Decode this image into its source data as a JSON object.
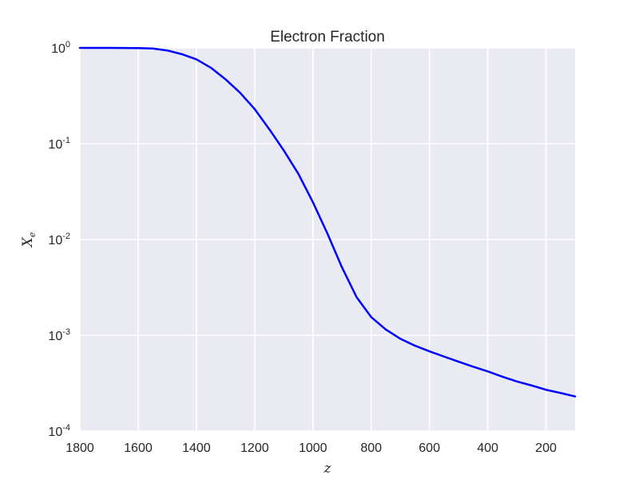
{
  "chart_data": {
    "type": "line",
    "title": "Electron Fraction",
    "xlabel": "z",
    "ylabel_main": "X",
    "ylabel_sub": "e",
    "y_scale": "log",
    "x_inverted": true,
    "xlim": [
      1800,
      100
    ],
    "ylim": [
      0.0001,
      1
    ],
    "grid": true,
    "background_color": "#EAEAF2",
    "grid_color": "#FFFFFF",
    "line_color": "#0000FF",
    "x_ticks": [
      1800,
      1600,
      1400,
      1200,
      1000,
      800,
      600,
      400,
      200
    ],
    "x_tick_labels": [
      "1800",
      "1600",
      "1400",
      "1200",
      "1000",
      "800",
      "600",
      "400",
      "200"
    ],
    "y_ticks": [
      {
        "value": 1,
        "base": "10",
        "exp": "0"
      },
      {
        "value": 0.1,
        "base": "10",
        "exp": "-1"
      },
      {
        "value": 0.01,
        "base": "10",
        "exp": "-2"
      },
      {
        "value": 0.001,
        "base": "10",
        "exp": "-3"
      },
      {
        "value": 0.0001,
        "base": "10",
        "exp": "-4"
      }
    ],
    "series": [
      {
        "x": [
          1800,
          1700,
          1600,
          1550,
          1500,
          1450,
          1400,
          1350,
          1300,
          1250,
          1200,
          1150,
          1100,
          1050,
          1000,
          950,
          900,
          850,
          800,
          750,
          700,
          650,
          600,
          550,
          500,
          450,
          400,
          350,
          300,
          250,
          200,
          150,
          100
        ],
        "y": [
          1.0,
          1.0,
          0.995,
          0.985,
          0.94,
          0.86,
          0.76,
          0.62,
          0.47,
          0.34,
          0.23,
          0.142,
          0.085,
          0.0485,
          0.0245,
          0.0115,
          0.0051,
          0.0025,
          0.00155,
          0.00115,
          0.00092,
          0.00078,
          0.00068,
          0.0006,
          0.00053,
          0.00047,
          0.00042,
          0.00037,
          0.00033,
          0.0003,
          0.00027,
          0.00025,
          0.00023
        ]
      }
    ]
  }
}
